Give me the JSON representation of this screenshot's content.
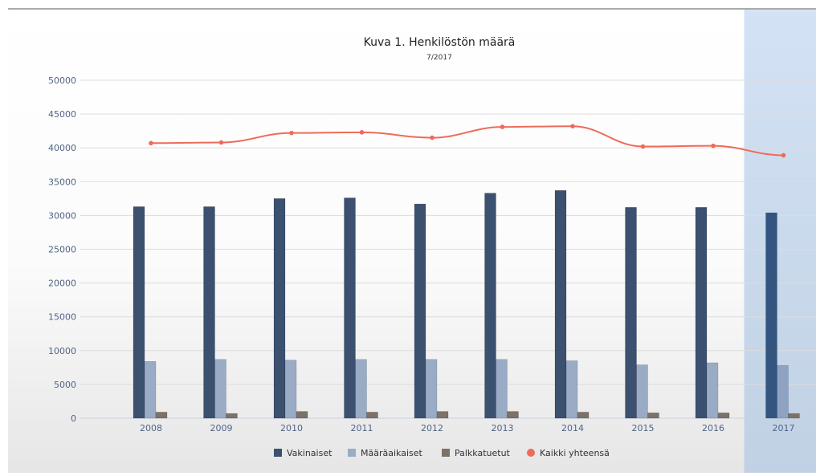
{
  "chart_data": {
    "type": "bar",
    "title": "Kuva 1. Henkilöstön määrä",
    "subtitle": "7/2017",
    "xlabel": "",
    "ylabel": "",
    "categories": [
      "2008",
      "2009",
      "2010",
      "2011",
      "2012",
      "2013",
      "2014",
      "2015",
      "2016",
      "2017"
    ],
    "highlight_category": "2017",
    "ylim": [
      0,
      50000
    ],
    "yticks": [
      0,
      5000,
      10000,
      15000,
      20000,
      25000,
      30000,
      35000,
      40000,
      45000,
      50000
    ],
    "grid": true,
    "legend_position": "bottom",
    "series": [
      {
        "name": "Vakinaiset",
        "kind": "bar",
        "color": "#3c5070",
        "values": [
          31300,
          31300,
          32500,
          32600,
          31700,
          33300,
          33700,
          31200,
          31200,
          30400
        ]
      },
      {
        "name": "Määräaikaiset",
        "kind": "bar",
        "color": "#9aabc6",
        "values": [
          8400,
          8700,
          8600,
          8700,
          8700,
          8700,
          8500,
          7900,
          8200,
          7800
        ]
      },
      {
        "name": "Palkkatuetut",
        "kind": "bar",
        "color": "#7d7268",
        "values": [
          900,
          700,
          1000,
          900,
          1000,
          1000,
          900,
          800,
          800,
          700
        ]
      },
      {
        "name": "Kaikki yhteensä",
        "kind": "line",
        "color": "#ef6a5a",
        "values": [
          40700,
          40800,
          42200,
          42300,
          41500,
          43100,
          43200,
          40200,
          40300,
          38900
        ]
      }
    ]
  }
}
